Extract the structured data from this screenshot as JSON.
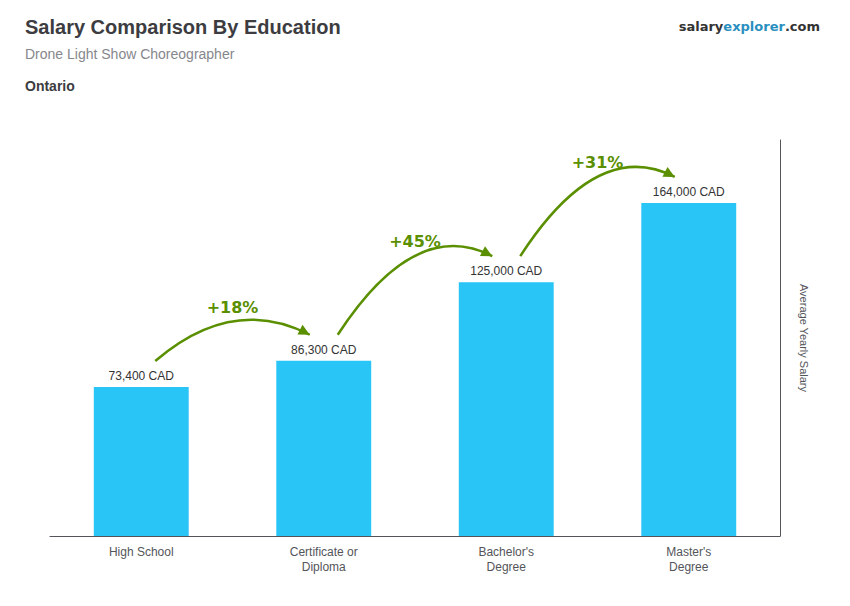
{
  "chart_data": {
    "type": "bar",
    "title": "Salary Comparison By Education",
    "subtitle": "Drone Light Show Choreographer",
    "location": "Ontario",
    "brand": [
      "salary",
      "explorer",
      ".com"
    ],
    "categories": [
      "High School",
      "Certificate or\nDiploma",
      "Bachelor's\nDegree",
      "Master's\nDegree"
    ],
    "values": [
      73400,
      86300,
      125000,
      164000
    ],
    "value_labels": [
      "73,400 CAD",
      "86,300 CAD",
      "125,000 CAD",
      "164,000 CAD"
    ],
    "data_labels": true,
    "color": "#29c5f6",
    "ylabel": "Average Yearly Salary",
    "ylim": [
      0,
      195000
    ],
    "tick_labels": "x",
    "grid": false,
    "annotations": [
      {
        "text": "+18%",
        "from": 0,
        "to": 1
      },
      {
        "text": "+45%",
        "from": 1,
        "to": 2
      },
      {
        "text": "+31%",
        "from": 2,
        "to": 3
      }
    ]
  }
}
